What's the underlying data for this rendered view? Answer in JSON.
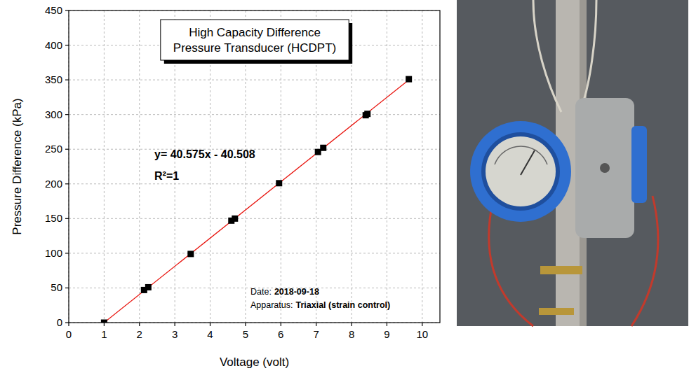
{
  "chart_data": {
    "type": "scatter",
    "title": "High Capacity Difference Pressure Transducer (HCDPT)",
    "x_label": "Voltage (volt)",
    "y_label": "Pressure Difference (kPa)",
    "xlim": [
      0,
      10.5
    ],
    "ylim": [
      0,
      450
    ],
    "xticks": [
      0,
      1,
      2,
      3,
      4,
      5,
      6,
      7,
      8,
      9,
      10
    ],
    "yticks": [
      0,
      50,
      100,
      150,
      200,
      250,
      300,
      350,
      400,
      450
    ],
    "grid": true,
    "series": [
      {
        "type": "line",
        "color": "#e8120c",
        "line_style": "solid",
        "x": [
          1.0,
          9.63
        ],
        "values": [
          0.1,
          350.4
        ]
      },
      {
        "type": "scatter",
        "color": "#000000",
        "marker": "square",
        "x": [
          1.0,
          2.13,
          2.25,
          3.45,
          4.6,
          4.7,
          5.95,
          7.05,
          7.2,
          8.4,
          8.45,
          9.62
        ],
        "values": [
          0,
          47,
          51,
          99,
          147,
          150,
          201,
          246,
          252,
          299,
          301,
          351
        ]
      }
    ],
    "annotations": [
      "y= 40.575x - 40.508",
      "R²=1"
    ],
    "notes": [
      {
        "label": "Date:",
        "value": "2018-09-18"
      },
      {
        "label": "Apparatus:",
        "value": "Triaxial (strain control)"
      }
    ]
  }
}
